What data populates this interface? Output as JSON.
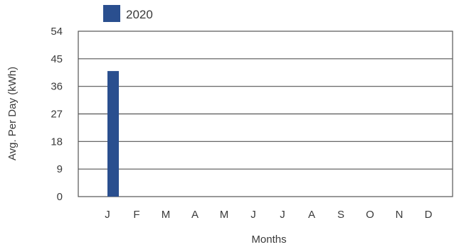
{
  "chart_data": {
    "type": "bar",
    "categories": [
      "J",
      "F",
      "M",
      "A",
      "M",
      "J",
      "J",
      "A",
      "S",
      "O",
      "N",
      "D"
    ],
    "series": [
      {
        "name": "2020",
        "values": [
          41,
          null,
          null,
          null,
          null,
          null,
          null,
          null,
          null,
          null,
          null,
          null
        ]
      }
    ],
    "xlabel": "Months",
    "ylabel": "Avg. Per Day (kWh)",
    "ylim": [
      0,
      54
    ],
    "yticks": [
      0,
      9,
      18,
      27,
      36,
      45,
      54
    ],
    "grid": true,
    "legend_position": "top-left",
    "colors": {
      "series": "#2a4f8f",
      "grid": "#555555",
      "frame": "#555555"
    }
  }
}
